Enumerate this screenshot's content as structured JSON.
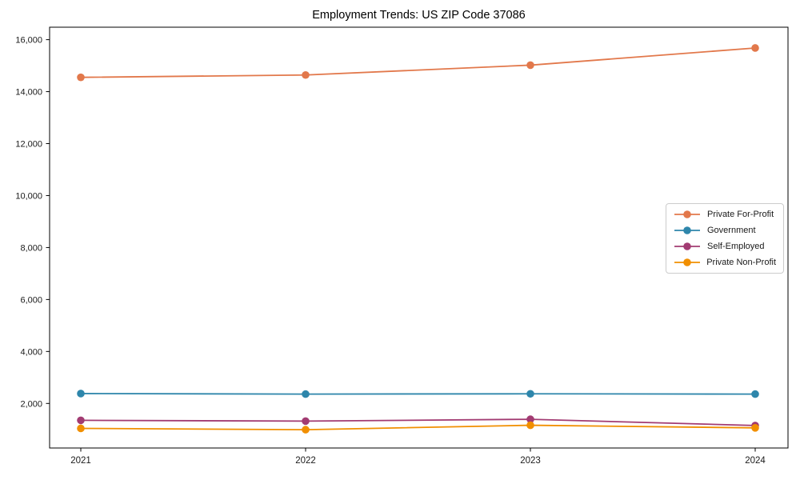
{
  "chart_data": {
    "type": "line",
    "title": "Employment Trends: US ZIP Code 37086",
    "x": [
      "2021",
      "2022",
      "2023",
      "2024"
    ],
    "series": [
      {
        "name": "Private For-Profit",
        "color": "#E2784B",
        "values": [
          14550,
          14640,
          15020,
          15680
        ]
      },
      {
        "name": "Government",
        "color": "#2E86AB",
        "values": [
          2380,
          2360,
          2370,
          2360
        ]
      },
      {
        "name": "Self-Employed",
        "color": "#A23B72",
        "values": [
          1350,
          1320,
          1390,
          1150
        ]
      },
      {
        "name": "Private Non-Profit",
        "color": "#F18F01",
        "values": [
          1040,
          990,
          1160,
          1060
        ]
      }
    ],
    "xlabel": "",
    "ylabel": "",
    "ylim": [
      285,
      16480
    ],
    "yticks": [
      2000,
      4000,
      6000,
      8000,
      10000,
      12000,
      14000,
      16000
    ],
    "grid": false,
    "legend_position": "center right",
    "axis_color": "#000000",
    "tick_label_color": "#1a1a1a",
    "background_color": "#ffffff",
    "marker": "circle",
    "line_width": 1.8,
    "marker_radius": 4.8
  }
}
